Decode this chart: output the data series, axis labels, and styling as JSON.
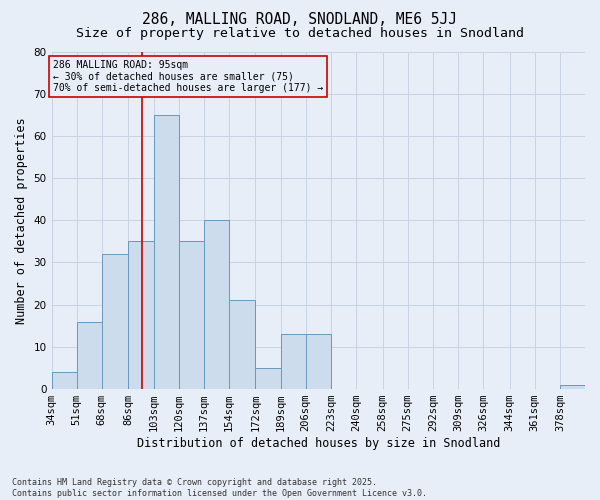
{
  "title": "286, MALLING ROAD, SNODLAND, ME6 5JJ",
  "subtitle": "Size of property relative to detached houses in Snodland",
  "xlabel": "Distribution of detached houses by size in Snodland",
  "ylabel": "Number of detached properties",
  "footer_line1": "Contains HM Land Registry data © Crown copyright and database right 2025.",
  "footer_line2": "Contains public sector information licensed under the Open Government Licence v3.0.",
  "bin_edges": [
    34,
    51,
    68,
    86,
    103,
    120,
    137,
    154,
    172,
    189,
    206,
    223,
    240,
    258,
    275,
    292,
    309,
    326,
    344,
    361,
    378
  ],
  "bar_heights": [
    4,
    16,
    32,
    35,
    65,
    35,
    40,
    21,
    5,
    13,
    13,
    0,
    0,
    0,
    0,
    0,
    0,
    0,
    0,
    0,
    1
  ],
  "bar_color": "#ccdcec",
  "bar_edge_color": "#6699bb",
  "grid_color": "#c8d4e4",
  "background_color": "#e8eef8",
  "vline_x": 95,
  "vline_color": "#cc0000",
  "annotation_text_line1": "286 MALLING ROAD: 95sqm",
  "annotation_text_line2": "← 30% of detached houses are smaller (75)",
  "annotation_text_line3": "70% of semi-detached houses are larger (177) →",
  "annotation_box_color": "#cc0000",
  "ylim": [
    0,
    80
  ],
  "yticks": [
    0,
    10,
    20,
    30,
    40,
    50,
    60,
    70,
    80
  ],
  "tick_label_fontsize": 7.5,
  "xlabel_fontsize": 8.5,
  "ylabel_fontsize": 8.5,
  "title_fontsize": 10.5,
  "subtitle_fontsize": 9.5,
  "footer_fontsize": 6.0
}
